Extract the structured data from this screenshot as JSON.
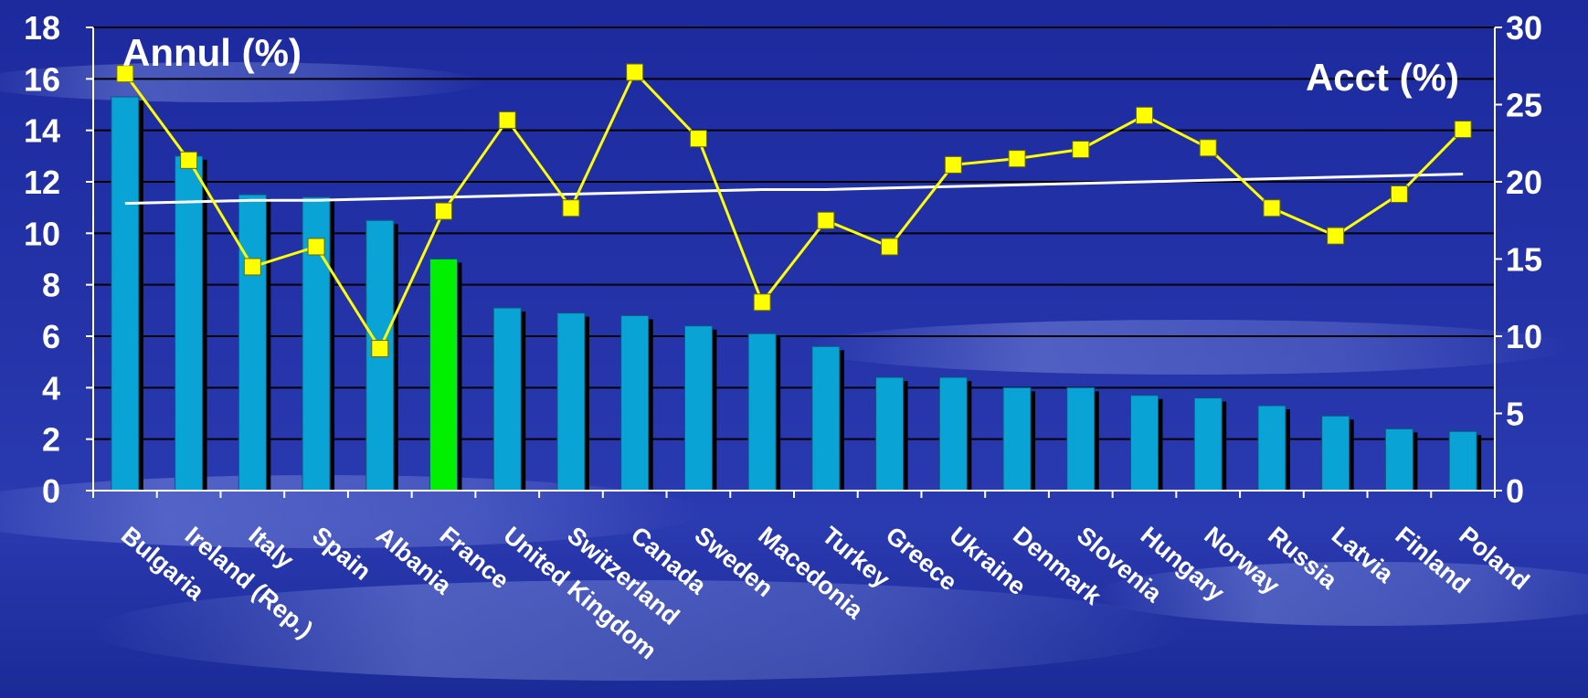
{
  "chart_data": {
    "type": "bar",
    "left_axis_label": "Annul (%)",
    "right_axis_label": "Acct (%)",
    "categories": [
      "Bulgaria",
      "Ireland (Rep.)",
      "Italy",
      "Spain",
      "Albania",
      "France",
      "United Kingdom",
      "Switzerland",
      "Canada",
      "Sweden",
      "Macedonia",
      "Turkey",
      "Greece",
      "Ukraine",
      "Denmark",
      "Slovenia",
      "Hungary",
      "Norway",
      "Russia",
      "Latvia",
      "Finland",
      "Poland"
    ],
    "series": [
      {
        "type": "bar",
        "axis": "left",
        "values": [
          15.3,
          13.0,
          11.5,
          11.4,
          10.5,
          9.0,
          7.1,
          6.9,
          6.8,
          6.4,
          6.1,
          5.6,
          4.4,
          4.4,
          4.0,
          4.0,
          3.7,
          3.6,
          3.3,
          2.9,
          2.4,
          2.3
        ]
      },
      {
        "type": "line",
        "axis": "right",
        "values": [
          27.0,
          21.4,
          14.5,
          15.8,
          9.2,
          18.1,
          24.0,
          18.3,
          27.1,
          22.8,
          12.2,
          17.5,
          15.8,
          21.1,
          21.5,
          22.1,
          24.3,
          22.2,
          18.3,
          16.5,
          19.2,
          23.4
        ]
      },
      {
        "type": "trendline",
        "axis": "right",
        "values": [
          18.6,
          18.7,
          18.8,
          18.8,
          18.9,
          19.0,
          19.1,
          19.2,
          19.3,
          19.4,
          19.5,
          19.5,
          19.6,
          19.7,
          19.8,
          19.9,
          20.0,
          20.1,
          20.2,
          20.3,
          20.4,
          20.5
        ]
      }
    ],
    "left_axis": {
      "min": 0,
      "max": 18,
      "step": 2
    },
    "right_axis": {
      "min": 0,
      "max": 30,
      "step": 5
    },
    "grid": true,
    "highlight_category": "France",
    "colors": {
      "bar": "#0aa3d6",
      "bar_highlight": "#00f000",
      "bar_shadow": "#000000",
      "line": "#ffff00",
      "marker": "#ffff00",
      "marker_stroke": "#6a6a00",
      "trendline": "#ffffff",
      "grid": "#000000",
      "axis": "#ffffff",
      "text": "#ffffff"
    }
  }
}
